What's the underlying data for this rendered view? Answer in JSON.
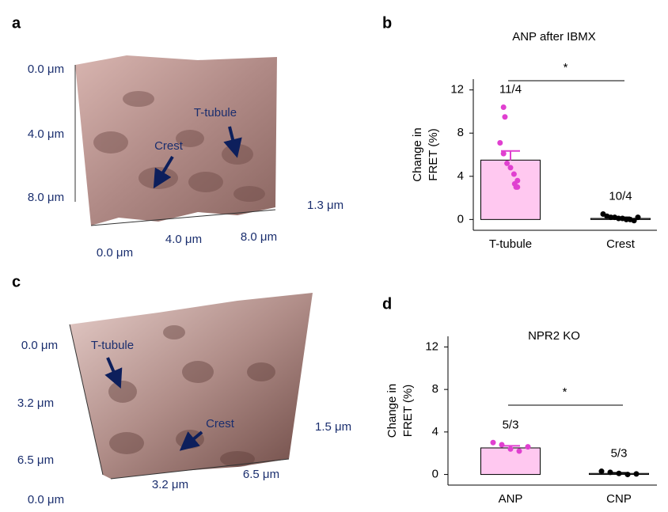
{
  "panel_labels": [
    "a",
    "b",
    "c",
    "d"
  ],
  "afm_images": [
    {
      "axis_labels": [
        "0.0 μm",
        "4.0 μm",
        "8.0 μm",
        "1.3 μm",
        "0.0 μm",
        "4.0 μm",
        "8.0 μm"
      ],
      "annotations": [
        "T-tubule",
        "Crest"
      ]
    },
    {
      "axis_labels": [
        "0.0 μm",
        "3.2 μm",
        "6.5 μm",
        "1.5 μm",
        "0.0 μm",
        "3.2 μm",
        "6.5 μm"
      ],
      "annotations": [
        "T-tubule",
        "Crest"
      ]
    }
  ],
  "chart_data": [
    {
      "type": "bar",
      "title": "ANP after IBMX",
      "ylabel": [
        "Change in",
        "FRET (%)"
      ],
      "categories": [
        "T-tubule",
        "Crest"
      ],
      "values": [
        5.5,
        0.1
      ],
      "errors": [
        0.85,
        0.1
      ],
      "colors": [
        "#ffc8f0",
        "#8c8c8c"
      ],
      "point_colors": [
        "#e040d0",
        "#000000"
      ],
      "points": [
        [
          10.4,
          9.5,
          7.1,
          6.1,
          5.2,
          4.8,
          4.2,
          3.6,
          3.3,
          3.0,
          3.0
        ],
        [
          0.5,
          0.3,
          0.2,
          0.2,
          0.1,
          0.1,
          0.0,
          0.0,
          -0.1,
          0.2
        ]
      ],
      "n_labels": [
        "11/4",
        "10/4"
      ],
      "significance": "*",
      "ylim": [
        -1,
        13
      ],
      "yticks": [
        0,
        4,
        8,
        12
      ]
    },
    {
      "type": "bar",
      "title": "NPR2 KO",
      "ylabel": [
        "Change in",
        "FRET (%)"
      ],
      "categories": [
        "ANP",
        "CNP"
      ],
      "values": [
        2.5,
        0.1
      ],
      "errors": [
        0.2,
        0.05
      ],
      "colors": [
        "#ffc8f0",
        "#8c8c8c"
      ],
      "point_colors": [
        "#e040d0",
        "#000000"
      ],
      "points": [
        [
          3.0,
          2.8,
          2.4,
          2.2,
          2.6
        ],
        [
          0.3,
          0.2,
          0.1,
          0.0,
          0.05
        ]
      ],
      "n_labels": [
        "5/3",
        "5/3"
      ],
      "significance": "*",
      "ylim": [
        -1,
        13
      ],
      "yticks": [
        0,
        4,
        8,
        12
      ]
    }
  ]
}
